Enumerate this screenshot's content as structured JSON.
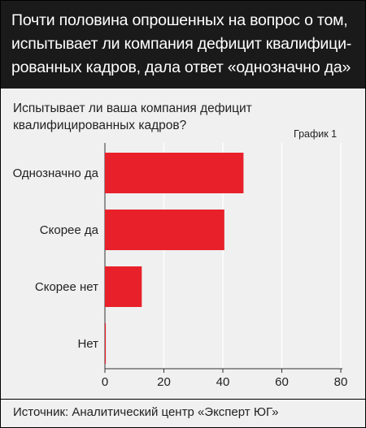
{
  "header": {
    "title": "Почти половина опрошенных на вопрос о том, испытывает ли компания дефицит квалифици-рованных кадров, дала ответ «однозначно да»"
  },
  "question": "Испытывает ли ваша компания дефицит квалифицированных кадров?",
  "chart_label": "График 1",
  "source": "Источник: Аналитический центр «Эксперт ЮГ»",
  "colors": {
    "bar": "#e8202a",
    "header_bg": "#1a1a1a",
    "panel_bg": "#f0f0f0"
  },
  "chart_data": {
    "type": "bar",
    "orientation": "horizontal",
    "categories": [
      "Однозначно да",
      "Скорее да",
      "Скорее нет",
      "Нет"
    ],
    "values": [
      47,
      40.5,
      12.5,
      0.3
    ],
    "xlim": [
      0,
      80
    ],
    "xticks": [
      0,
      20,
      40,
      60,
      80
    ],
    "grid": true,
    "title": "",
    "xlabel": "",
    "ylabel": ""
  }
}
